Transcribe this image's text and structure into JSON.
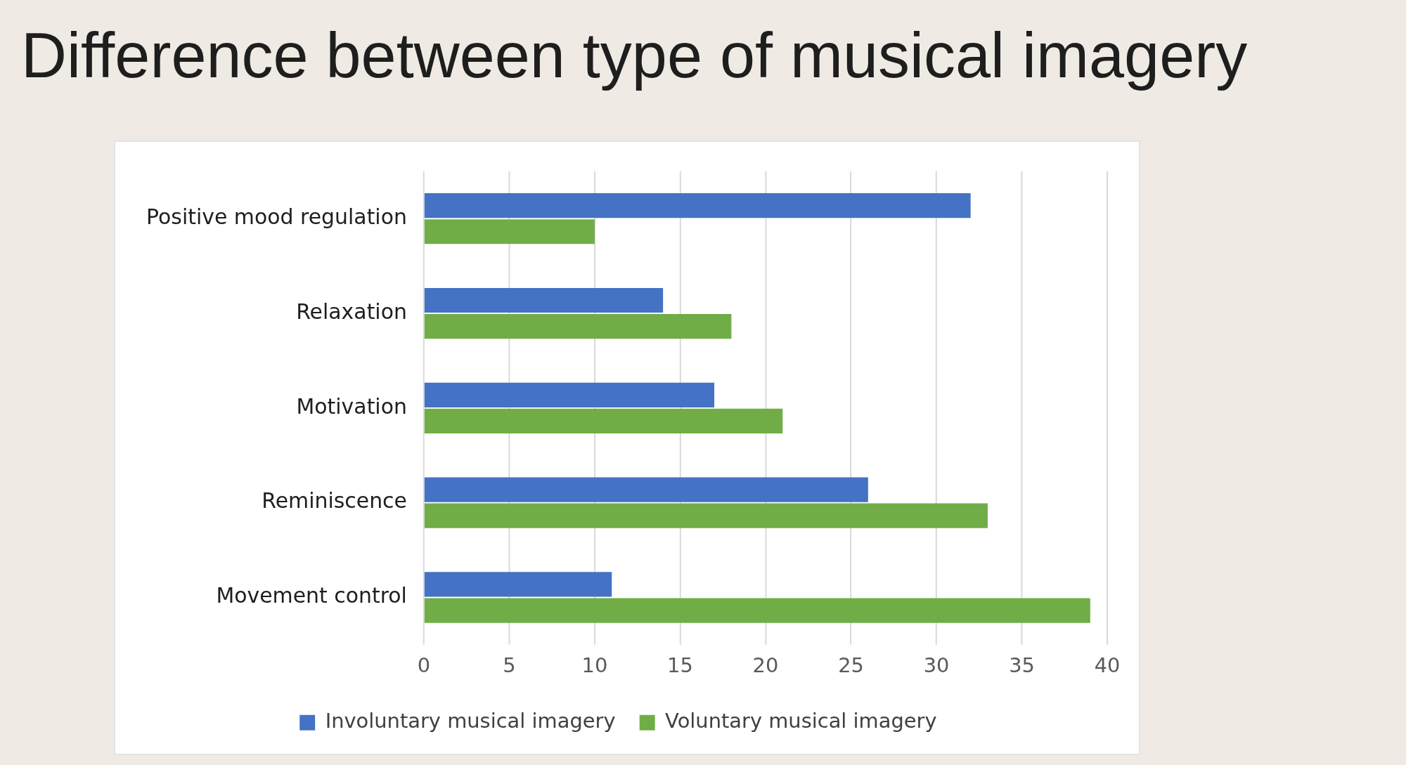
{
  "chart_data": {
    "type": "bar",
    "orientation": "horizontal",
    "title": "Difference between type of musical imagery",
    "categories": [
      "Positive mood regulation",
      "Relaxation",
      "Motivation",
      "Reminiscence",
      "Movement control"
    ],
    "series": [
      {
        "name": "Involuntary musical imagery",
        "color": "#4472c4",
        "values": [
          32,
          14,
          17,
          26,
          11
        ]
      },
      {
        "name": "Voluntary musical imagery",
        "color": "#70ad47",
        "values": [
          10,
          18,
          21,
          33,
          39
        ]
      }
    ],
    "xlim": [
      0,
      40
    ],
    "xticks": [
      0,
      5,
      10,
      15,
      20,
      25,
      30,
      35,
      40
    ],
    "grid": "x",
    "legend": "bottom"
  }
}
